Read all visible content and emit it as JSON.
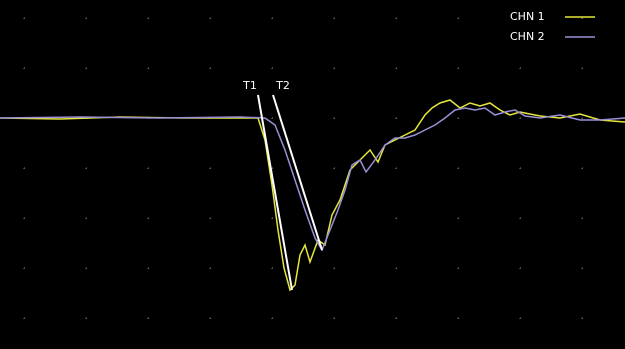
{
  "chart_data": {
    "type": "line",
    "xlim": [
      0,
      625
    ],
    "ylim": [
      -231,
      118
    ],
    "xticks": [
      24,
      86,
      148,
      210,
      272,
      334,
      396,
      458,
      520,
      582
    ],
    "yticks": [
      100,
      50,
      0,
      -50,
      -100,
      -150,
      -200
    ],
    "grid": true,
    "legend": "top-right",
    "annotations": [
      "T1",
      "T2"
    ],
    "series": [
      {
        "name": "CHN 1",
        "color": "#e6e63c",
        "x": [
          0,
          60,
          120,
          180,
          240,
          258,
          265,
          272,
          278,
          284,
          290,
          295,
          300,
          305,
          310,
          318,
          325,
          332,
          340,
          350,
          360,
          370,
          378,
          385,
          395,
          405,
          415,
          425,
          432,
          440,
          450,
          460,
          470,
          480,
          490,
          500,
          510,
          520,
          540,
          560,
          580,
          600,
          625
        ],
        "values": [
          0,
          -1,
          1,
          0,
          0,
          0,
          -22,
          -67,
          -112,
          -150,
          -172,
          -167,
          -137,
          -127,
          -144,
          -122,
          -127,
          -97,
          -82,
          -52,
          -42,
          -32,
          -44,
          -27,
          -22,
          -17,
          -12,
          3,
          10,
          15,
          18,
          10,
          15,
          12,
          15,
          8,
          3,
          6,
          2,
          0,
          4,
          -2,
          -4
        ]
      },
      {
        "name": "CHN 2",
        "color": "#9a8fd6",
        "x": [
          0,
          80,
          160,
          240,
          265,
          275,
          285,
          295,
          305,
          315,
          322,
          330,
          338,
          345,
          352,
          360,
          366,
          375,
          385,
          395,
          405,
          415,
          425,
          435,
          445,
          455,
          465,
          475,
          485,
          495,
          505,
          515,
          525,
          540,
          560,
          580,
          600,
          625
        ],
        "values": [
          0,
          1,
          0,
          1,
          0,
          -7,
          -32,
          -62,
          -92,
          -120,
          -132,
          -112,
          -92,
          -72,
          -47,
          -42,
          -54,
          -42,
          -27,
          -20,
          -20,
          -17,
          -12,
          -7,
          0,
          8,
          10,
          8,
          10,
          3,
          6,
          8,
          2,
          0,
          3,
          -2,
          -2,
          0
        ]
      }
    ]
  }
}
